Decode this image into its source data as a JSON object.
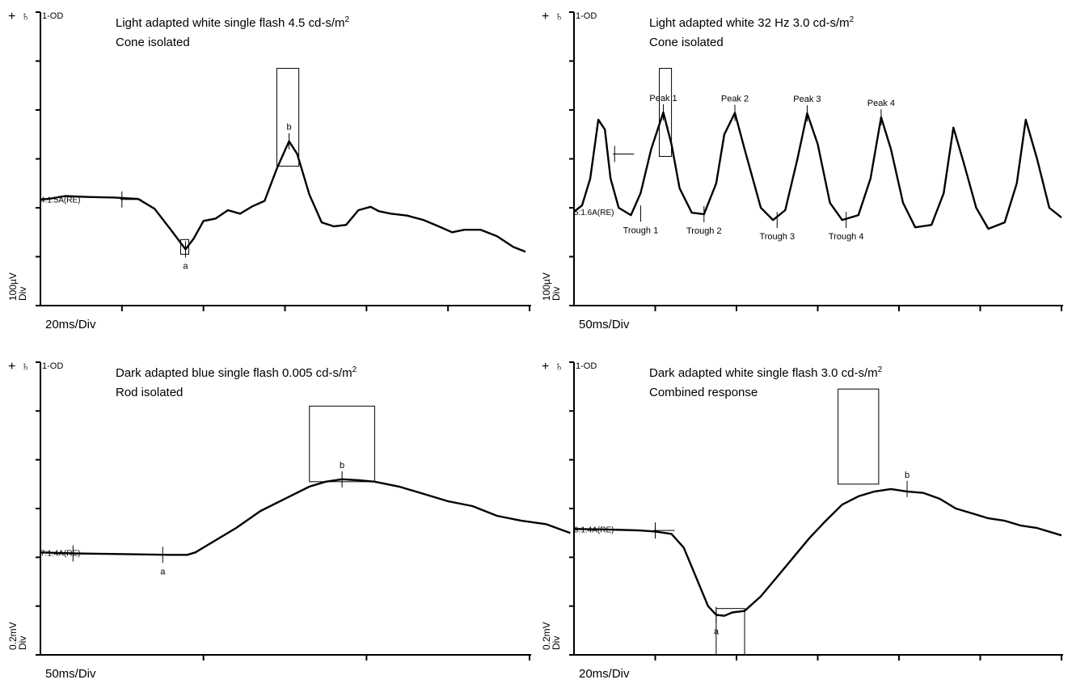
{
  "panel_marker": "1-OD",
  "corner_symbol": "+",
  "channel_symbol": "♄",
  "colors": {
    "trace": "#000000",
    "axis": "#000000",
    "background": "#ffffff"
  },
  "chart_data": [
    {
      "id": "top-left",
      "type": "line",
      "title_line1": "Light adapted white single flash 4.5 cd-s/m",
      "title_sup": "2",
      "title_line2": "Cone isolated",
      "ylabel_line1": "100µV",
      "ylabel_line2": "Div",
      "xlabel": "20ms/Div",
      "baseline_label": "4:1.5A(RE)",
      "x_divisions": 6,
      "y_divisions": 6,
      "x_div_ms": 20,
      "y_div_uV": 100,
      "series": [
        {
          "values": [
            [
              0,
              2.17
            ],
            [
              0.1,
              2.18
            ],
            [
              0.3,
              2.24
            ],
            [
              0.6,
              2.22
            ],
            [
              0.9,
              2.21
            ],
            [
              1.2,
              2.18
            ],
            [
              1.4,
              1.98
            ],
            [
              1.6,
              1.55
            ],
            [
              1.78,
              1.15
            ],
            [
              1.88,
              1.37
            ],
            [
              2.0,
              1.73
            ],
            [
              2.15,
              1.78
            ],
            [
              2.3,
              1.95
            ],
            [
              2.45,
              1.88
            ],
            [
              2.6,
              2.03
            ],
            [
              2.75,
              2.14
            ],
            [
              2.9,
              2.8
            ],
            [
              3.05,
              3.36
            ],
            [
              3.15,
              3.1
            ],
            [
              3.3,
              2.27
            ],
            [
              3.45,
              1.7
            ],
            [
              3.6,
              1.62
            ],
            [
              3.75,
              1.65
            ],
            [
              3.9,
              1.95
            ],
            [
              4.05,
              2.02
            ],
            [
              4.15,
              1.93
            ],
            [
              4.3,
              1.88
            ],
            [
              4.5,
              1.84
            ],
            [
              4.7,
              1.75
            ],
            [
              4.9,
              1.61
            ],
            [
              5.05,
              1.5
            ],
            [
              5.2,
              1.55
            ],
            [
              5.4,
              1.55
            ],
            [
              5.6,
              1.42
            ],
            [
              5.8,
              1.2
            ],
            [
              5.95,
              1.1
            ]
          ]
        }
      ],
      "markers": [
        {
          "name": "a",
          "x": 1.78,
          "y": 1.15
        },
        {
          "name": "b",
          "x": 3.05,
          "y": 3.36
        }
      ],
      "cursor": {
        "x": 1.0,
        "y": 2.17
      },
      "boxes": [
        {
          "x0": 1.72,
          "y0": 1.05,
          "x1": 1.82,
          "y1": 1.35
        },
        {
          "x0": 2.9,
          "y0": 2.85,
          "x1": 3.17,
          "y1": 4.85
        }
      ]
    },
    {
      "id": "top-right",
      "type": "line",
      "title_line1": "Light adapted white 32 Hz 3.0 cd-s/m",
      "title_sup": "2",
      "title_line2": "Cone isolated",
      "ylabel_line1": "100µV",
      "ylabel_line2": "Div",
      "xlabel": "50ms/Div",
      "baseline_label": "5:1.6A(RE)",
      "x_divisions": 6,
      "y_divisions": 6,
      "x_div_ms": 50,
      "y_div_uV": 100,
      "series": [
        {
          "values": [
            [
              0,
              1.92
            ],
            [
              0.1,
              2.05
            ],
            [
              0.2,
              2.6
            ],
            [
              0.3,
              3.8
            ],
            [
              0.38,
              3.6
            ],
            [
              0.45,
              2.6
            ],
            [
              0.55,
              2.0
            ],
            [
              0.7,
              1.85
            ],
            [
              0.82,
              2.3
            ],
            [
              0.95,
              3.2
            ],
            [
              1.1,
              3.95
            ],
            [
              1.2,
              3.3
            ],
            [
              1.3,
              2.4
            ],
            [
              1.45,
              1.9
            ],
            [
              1.6,
              1.87
            ],
            [
              1.75,
              2.5
            ],
            [
              1.85,
              3.5
            ],
            [
              1.98,
              3.94
            ],
            [
              2.1,
              3.2
            ],
            [
              2.3,
              2.0
            ],
            [
              2.45,
              1.75
            ],
            [
              2.6,
              1.95
            ],
            [
              2.75,
              3.0
            ],
            [
              2.87,
              3.93
            ],
            [
              3.0,
              3.3
            ],
            [
              3.15,
              2.1
            ],
            [
              3.3,
              1.75
            ],
            [
              3.5,
              1.85
            ],
            [
              3.65,
              2.6
            ],
            [
              3.78,
              3.85
            ],
            [
              3.9,
              3.2
            ],
            [
              4.05,
              2.1
            ],
            [
              4.2,
              1.6
            ],
            [
              4.4,
              1.65
            ],
            [
              4.55,
              2.3
            ],
            [
              4.67,
              3.64
            ],
            [
              4.8,
              2.9
            ],
            [
              4.95,
              2.0
            ],
            [
              5.1,
              1.57
            ],
            [
              5.3,
              1.7
            ],
            [
              5.45,
              2.5
            ],
            [
              5.56,
              3.8
            ],
            [
              5.7,
              3.0
            ],
            [
              5.85,
              2.0
            ],
            [
              6.0,
              1.8
            ]
          ]
        }
      ],
      "markers": [
        {
          "name": "Peak 1",
          "x": 1.1,
          "y": 3.95
        },
        {
          "name": "Peak 2",
          "x": 1.98,
          "y": 3.94
        },
        {
          "name": "Peak 3",
          "x": 2.87,
          "y": 3.93
        },
        {
          "name": "Peak 4",
          "x": 3.78,
          "y": 3.85
        },
        {
          "name": "Trough 1",
          "x": 0.82,
          "y": 1.88
        },
        {
          "name": "Trough 2",
          "x": 1.6,
          "y": 1.87
        },
        {
          "name": "Trough 3",
          "x": 2.5,
          "y": 1.75
        },
        {
          "name": "Trough 4",
          "x": 3.35,
          "y": 1.75
        }
      ],
      "cursor": {
        "x": 0.5,
        "y": 3.1
      },
      "boxes": [
        {
          "x0": 1.05,
          "y0": 3.05,
          "x1": 1.2,
          "y1": 4.85
        }
      ]
    },
    {
      "id": "bottom-left",
      "type": "line",
      "title_line1": "Dark adapted blue single flash 0.005 cd-s/m",
      "title_sup": "2",
      "title_line2": "Rod isolated",
      "ylabel_line1": "0.2mV",
      "ylabel_line2": "Div",
      "xlabel": "50ms/Div",
      "baseline_label": "7:1.4A(RE)",
      "x_divisions": 3,
      "y_divisions": 6,
      "x_div_ms": 50,
      "y_div_uV": 200,
      "series": [
        {
          "values": [
            [
              0,
              2.1
            ],
            [
              0.2,
              2.08
            ],
            [
              0.4,
              2.07
            ],
            [
              0.6,
              2.06
            ],
            [
              0.8,
              2.05
            ],
            [
              0.9,
              2.05
            ],
            [
              0.95,
              2.1
            ],
            [
              1.05,
              2.3
            ],
            [
              1.2,
              2.6
            ],
            [
              1.35,
              2.95
            ],
            [
              1.5,
              3.2
            ],
            [
              1.65,
              3.45
            ],
            [
              1.75,
              3.55
            ],
            [
              1.85,
              3.6
            ],
            [
              1.95,
              3.58
            ],
            [
              2.05,
              3.55
            ],
            [
              2.2,
              3.45
            ],
            [
              2.35,
              3.3
            ],
            [
              2.5,
              3.15
            ],
            [
              2.65,
              3.05
            ],
            [
              2.8,
              2.85
            ],
            [
              2.95,
              2.75
            ],
            [
              3.1,
              2.68
            ],
            [
              3.25,
              2.5
            ]
          ]
        }
      ],
      "markers": [
        {
          "name": "a",
          "x": 0.75,
          "y": 2.05
        },
        {
          "name": "b",
          "x": 1.85,
          "y": 3.6
        }
      ],
      "cursor": {
        "x": 0.2,
        "y": 2.08
      },
      "boxes": [
        {
          "x0": 1.65,
          "y0": 3.55,
          "x1": 2.05,
          "y1": 5.1
        }
      ]
    },
    {
      "id": "bottom-right",
      "type": "line",
      "title_line1": "Dark adapted white single flash 3.0 cd-s/m",
      "title_sup": "2",
      "title_line2": "Combined response",
      "ylabel_line1": "0.2mV",
      "ylabel_line2": "Div",
      "xlabel": "20ms/Div",
      "baseline_label": "9:1.4A(RE)",
      "x_divisions": 6,
      "y_divisions": 6,
      "x_div_ms": 20,
      "y_div_uV": 200,
      "series": [
        {
          "values": [
            [
              0,
              2.58
            ],
            [
              0.4,
              2.57
            ],
            [
              0.8,
              2.55
            ],
            [
              1.0,
              2.53
            ],
            [
              1.2,
              2.48
            ],
            [
              1.35,
              2.2
            ],
            [
              1.5,
              1.6
            ],
            [
              1.65,
              1.0
            ],
            [
              1.75,
              0.82
            ],
            [
              1.85,
              0.8
            ],
            [
              1.95,
              0.87
            ],
            [
              2.1,
              0.9
            ],
            [
              2.3,
              1.2
            ],
            [
              2.5,
              1.6
            ],
            [
              2.7,
              2.0
            ],
            [
              2.9,
              2.4
            ],
            [
              3.1,
              2.75
            ],
            [
              3.3,
              3.08
            ],
            [
              3.5,
              3.25
            ],
            [
              3.7,
              3.35
            ],
            [
              3.9,
              3.4
            ],
            [
              4.1,
              3.35
            ],
            [
              4.3,
              3.32
            ],
            [
              4.5,
              3.2
            ],
            [
              4.7,
              3.0
            ],
            [
              4.9,
              2.9
            ],
            [
              5.1,
              2.8
            ],
            [
              5.3,
              2.75
            ],
            [
              5.5,
              2.65
            ],
            [
              5.7,
              2.6
            ],
            [
              5.9,
              2.5
            ],
            [
              6.0,
              2.45
            ]
          ]
        }
      ],
      "markers": [
        {
          "name": "a",
          "x": 1.75,
          "y": 0.82
        },
        {
          "name": "b",
          "x": 4.1,
          "y": 3.4
        }
      ],
      "cursor": {
        "x": 1.0,
        "y": 2.55
      },
      "boxes": [
        {
          "x0": 3.25,
          "y0": 3.5,
          "x1": 3.75,
          "y1": 5.45
        },
        {
          "x0": 1.75,
          "y0": 0.0,
          "x1": 2.1,
          "y1": 0.95
        }
      ]
    }
  ]
}
